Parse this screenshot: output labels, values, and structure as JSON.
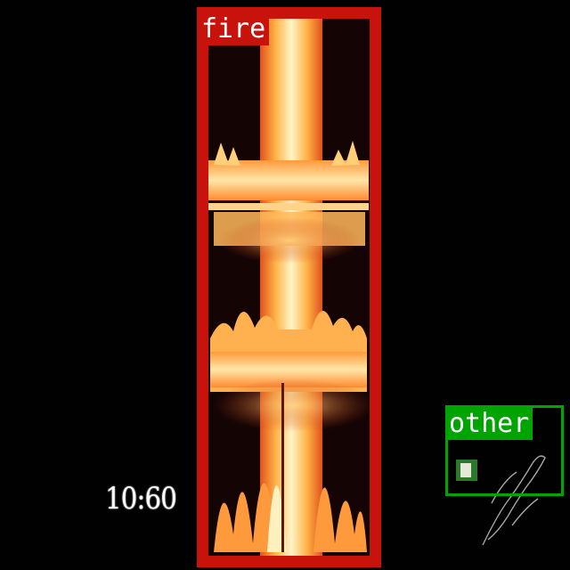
{
  "timestamp": "10:60",
  "detections": {
    "fire": {
      "label": "fire",
      "color": "#c8120c"
    },
    "other": {
      "label": "other",
      "color": "#00a400"
    }
  },
  "colors": {
    "background": "#020101",
    "flame_core": "#fff4c8",
    "flame_mid": "#ffb347",
    "flame_edge": "#e0521c"
  }
}
